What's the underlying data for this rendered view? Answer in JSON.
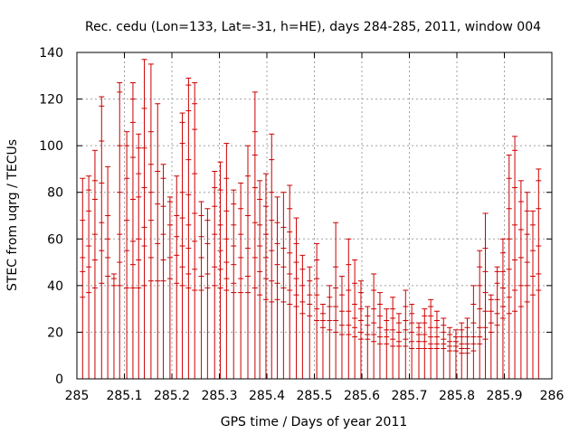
{
  "chart_data": {
    "type": "scatter",
    "style": "error-bars",
    "title": "Rec. cedu (Lon=133, Lat=-31, h=HE), days 284-285, 2011, window 004",
    "xlabel": "GPS time / Days of year 2011",
    "ylabel": "STEC from uqrg / TECUs",
    "xlim": [
      285,
      286
    ],
    "ylim": [
      0,
      140
    ],
    "xticks": [
      "285",
      "285.1",
      "285.2",
      "285.3",
      "285.4",
      "285.5",
      "285.6",
      "285.7",
      "285.8",
      "285.9",
      "286"
    ],
    "yticks": [
      "0",
      "20",
      "40",
      "60",
      "80",
      "100",
      "120",
      "140"
    ],
    "grid": true,
    "series_color": "#cc0000",
    "points": [
      {
        "x": 285.012,
        "top": 86,
        "values": [
          35,
          46,
          52,
          68
        ]
      },
      {
        "x": 285.025,
        "top": 87,
        "values": [
          37,
          48,
          57,
          72,
          81
        ]
      },
      {
        "x": 285.038,
        "top": 98,
        "values": [
          39,
          51,
          62,
          77,
          85
        ]
      },
      {
        "x": 285.052,
        "top": 121,
        "values": [
          41,
          55,
          67,
          84,
          102,
          117
        ]
      },
      {
        "x": 285.065,
        "top": 91,
        "values": [
          44,
          52,
          60,
          70
        ]
      },
      {
        "x": 285.078,
        "top": 45,
        "values": [
          40,
          43
        ]
      },
      {
        "x": 285.09,
        "top": 127,
        "values": [
          40,
          50,
          62,
          80,
          100,
          123
        ]
      },
      {
        "x": 285.105,
        "top": 106,
        "values": [
          39,
          55,
          68,
          86,
          100
        ]
      },
      {
        "x": 285.118,
        "top": 127,
        "values": [
          39,
          49,
          59,
          77,
          95,
          110,
          120
        ]
      },
      {
        "x": 285.13,
        "top": 105,
        "values": [
          39,
          51,
          60,
          78,
          88,
          99
        ]
      },
      {
        "x": 285.142,
        "top": 137,
        "values": [
          40,
          57,
          65,
          82,
          99,
          116
        ]
      },
      {
        "x": 285.156,
        "top": 135,
        "values": [
          42,
          52,
          68,
          80,
          92,
          106
        ]
      },
      {
        "x": 285.17,
        "top": 118,
        "values": [
          42,
          58,
          75,
          89
        ]
      },
      {
        "x": 285.182,
        "top": 92,
        "values": [
          42,
          51,
          62,
          74,
          86
        ]
      },
      {
        "x": 285.196,
        "top": 78,
        "values": [
          43,
          52,
          66,
          76
        ]
      },
      {
        "x": 285.21,
        "top": 87,
        "values": [
          41,
          53,
          61,
          70
        ]
      },
      {
        "x": 285.222,
        "top": 114,
        "values": [
          40,
          48,
          57,
          69,
          80,
          101,
          110
        ]
      },
      {
        "x": 285.235,
        "top": 129,
        "values": [
          39,
          45,
          56,
          66,
          79,
          94,
          115,
          126
        ]
      },
      {
        "x": 285.248,
        "top": 127,
        "values": [
          38,
          47,
          59,
          71,
          88,
          107,
          118
        ]
      },
      {
        "x": 285.262,
        "top": 76,
        "values": [
          38,
          44,
          52,
          61,
          70
        ]
      },
      {
        "x": 285.275,
        "top": 73,
        "values": [
          39,
          45,
          58,
          68
        ]
      },
      {
        "x": 285.29,
        "top": 89,
        "values": [
          40,
          48,
          62,
          74,
          82
        ]
      },
      {
        "x": 285.302,
        "top": 93,
        "values": [
          39,
          47,
          55,
          66,
          81
        ]
      },
      {
        "x": 285.315,
        "top": 101,
        "values": [
          38,
          43,
          50,
          60,
          72,
          86
        ]
      },
      {
        "x": 285.33,
        "top": 81,
        "values": [
          37,
          41,
          49,
          57,
          66,
          75
        ]
      },
      {
        "x": 285.345,
        "top": 84,
        "values": [
          37,
          43,
          52,
          62,
          73
        ]
      },
      {
        "x": 285.36,
        "top": 100,
        "values": [
          37,
          44,
          56,
          70,
          87
        ]
      },
      {
        "x": 285.375,
        "top": 123,
        "values": [
          39,
          52,
          67,
          82,
          96,
          106
        ]
      },
      {
        "x": 285.385,
        "top": 85,
        "values": [
          36,
          46,
          57,
          66,
          77
        ]
      },
      {
        "x": 285.398,
        "top": 88,
        "values": [
          34,
          43,
          52,
          62,
          74
        ]
      },
      {
        "x": 285.41,
        "top": 105,
        "values": [
          33,
          42,
          55,
          68,
          80,
          94
        ]
      },
      {
        "x": 285.422,
        "top": 78,
        "values": [
          34,
          41,
          49,
          58,
          67
        ]
      },
      {
        "x": 285.435,
        "top": 80,
        "values": [
          33,
          39,
          48,
          56,
          65
        ]
      },
      {
        "x": 285.448,
        "top": 83,
        "values": [
          32,
          38,
          45,
          54,
          63,
          73
        ]
      },
      {
        "x": 285.462,
        "top": 69,
        "values": [
          31,
          36,
          43,
          50,
          58
        ]
      },
      {
        "x": 285.475,
        "top": 53,
        "values": [
          28,
          33,
          40,
          47
        ]
      },
      {
        "x": 285.49,
        "top": 48,
        "values": [
          27,
          32,
          36,
          42
        ]
      },
      {
        "x": 285.505,
        "top": 58,
        "values": [
          25,
          30,
          36,
          43,
          51
        ]
      },
      {
        "x": 285.518,
        "top": 32,
        "values": [
          22,
          25,
          28
        ]
      },
      {
        "x": 285.532,
        "top": 40,
        "values": [
          21,
          25,
          31,
          35
        ]
      },
      {
        "x": 285.545,
        "top": 67,
        "values": [
          20,
          25,
          31,
          39,
          48
        ]
      },
      {
        "x": 285.558,
        "top": 44,
        "values": [
          19,
          23,
          29,
          36
        ]
      },
      {
        "x": 285.572,
        "top": 60,
        "values": [
          19,
          23,
          29,
          38,
          49
        ]
      },
      {
        "x": 285.585,
        "top": 51,
        "values": [
          18,
          22,
          26,
          32,
          41
        ]
      },
      {
        "x": 285.598,
        "top": 42,
        "values": [
          17,
          20,
          25,
          30,
          37
        ]
      },
      {
        "x": 285.612,
        "top": 31,
        "values": [
          17,
          19,
          23,
          27
        ]
      },
      {
        "x": 285.625,
        "top": 45,
        "values": [
          16,
          19,
          24,
          30,
          38
        ]
      },
      {
        "x": 285.638,
        "top": 37,
        "values": [
          15,
          18,
          22,
          27,
          32
        ]
      },
      {
        "x": 285.652,
        "top": 30,
        "values": [
          15,
          18,
          21,
          25
        ]
      },
      {
        "x": 285.665,
        "top": 35,
        "values": [
          14,
          17,
          21,
          26,
          30
        ]
      },
      {
        "x": 285.678,
        "top": 28,
        "values": [
          14,
          16,
          20,
          24
        ]
      },
      {
        "x": 285.692,
        "top": 38,
        "values": [
          14,
          17,
          21,
          25,
          31
        ]
      },
      {
        "x": 285.705,
        "top": 32,
        "values": [
          13,
          16,
          20,
          24,
          28
        ]
      },
      {
        "x": 285.72,
        "top": 24,
        "values": [
          13,
          16,
          19,
          22
        ]
      },
      {
        "x": 285.732,
        "top": 30,
        "values": [
          13,
          16,
          19,
          24,
          27
        ]
      },
      {
        "x": 285.745,
        "top": 34,
        "values": [
          13,
          15,
          18,
          22,
          27,
          31
        ]
      },
      {
        "x": 285.758,
        "top": 29,
        "values": [
          13,
          15,
          18,
          22,
          25
        ]
      },
      {
        "x": 285.772,
        "top": 26,
        "values": [
          13,
          15,
          17,
          20,
          23
        ]
      },
      {
        "x": 285.785,
        "top": 22,
        "values": [
          12,
          14,
          16,
          19
        ]
      },
      {
        "x": 285.798,
        "top": 21,
        "values": [
          12,
          14,
          16,
          18
        ]
      },
      {
        "x": 285.81,
        "top": 24,
        "values": [
          11,
          13,
          15,
          18,
          21
        ]
      },
      {
        "x": 285.822,
        "top": 26,
        "values": [
          11,
          13,
          15,
          18,
          22
        ]
      },
      {
        "x": 285.835,
        "top": 40,
        "values": [
          12,
          15,
          18,
          24,
          32
        ]
      },
      {
        "x": 285.848,
        "top": 55,
        "values": [
          15,
          18,
          22,
          30,
          40,
          48
        ]
      },
      {
        "x": 285.86,
        "top": 71,
        "values": [
          17,
          22,
          29,
          37,
          46,
          56
        ]
      },
      {
        "x": 285.872,
        "top": 36,
        "values": [
          20,
          24,
          29,
          34
        ]
      },
      {
        "x": 285.885,
        "top": 48,
        "values": [
          23,
          28,
          34,
          41,
          46
        ]
      },
      {
        "x": 285.897,
        "top": 60,
        "values": [
          26,
          31,
          39,
          46,
          54
        ]
      },
      {
        "x": 285.91,
        "top": 96,
        "values": [
          28,
          35,
          47,
          60,
          73,
          86
        ]
      },
      {
        "x": 285.922,
        "top": 104,
        "values": [
          29,
          38,
          51,
          66,
          82,
          98
        ]
      },
      {
        "x": 285.935,
        "top": 85,
        "values": [
          31,
          40,
          52,
          64,
          76
        ]
      },
      {
        "x": 285.948,
        "top": 80,
        "values": [
          33,
          40,
          50,
          62,
          72
        ]
      },
      {
        "x": 285.96,
        "top": 72,
        "values": [
          36,
          44,
          55,
          66
        ]
      },
      {
        "x": 285.972,
        "top": 90,
        "values": [
          38,
          45,
          57,
          73,
          85
        ]
      }
    ]
  }
}
